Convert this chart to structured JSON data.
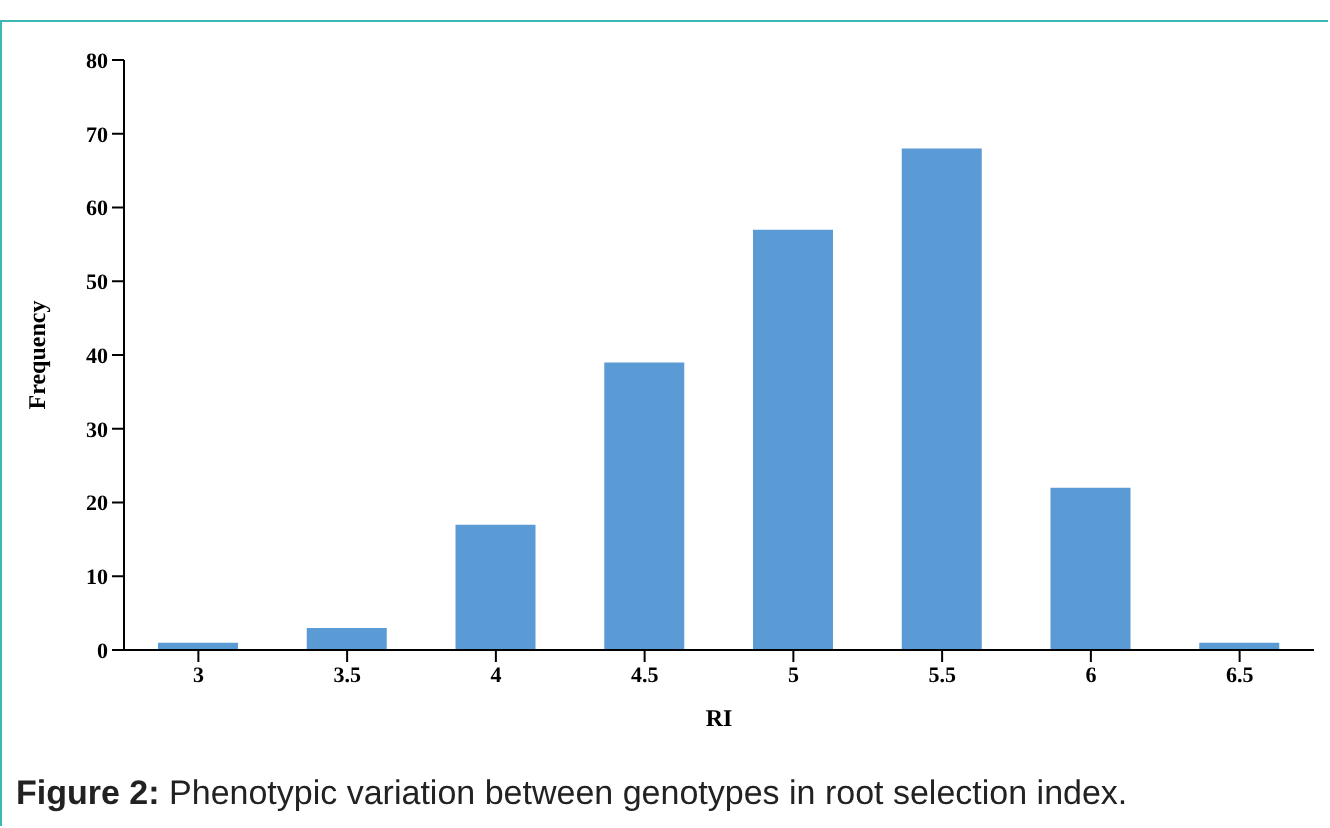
{
  "chart_data": {
    "type": "bar",
    "xlabel": "RI",
    "ylabel": "Frequency",
    "categories": [
      "3",
      "3.5",
      "4",
      "4.5",
      "5",
      "5.5",
      "6",
      "6.5"
    ],
    "values": [
      1,
      3,
      17,
      39,
      57,
      68,
      22,
      1
    ],
    "color": "#5b9bd5",
    "ylim": [
      0,
      80
    ],
    "yticks": [
      0,
      10,
      20,
      30,
      40,
      50,
      60,
      70,
      80
    ],
    "grid": false,
    "annotations": [
      "Figure 2: Phenotypic variation between genotypes in root selection index."
    ]
  }
}
